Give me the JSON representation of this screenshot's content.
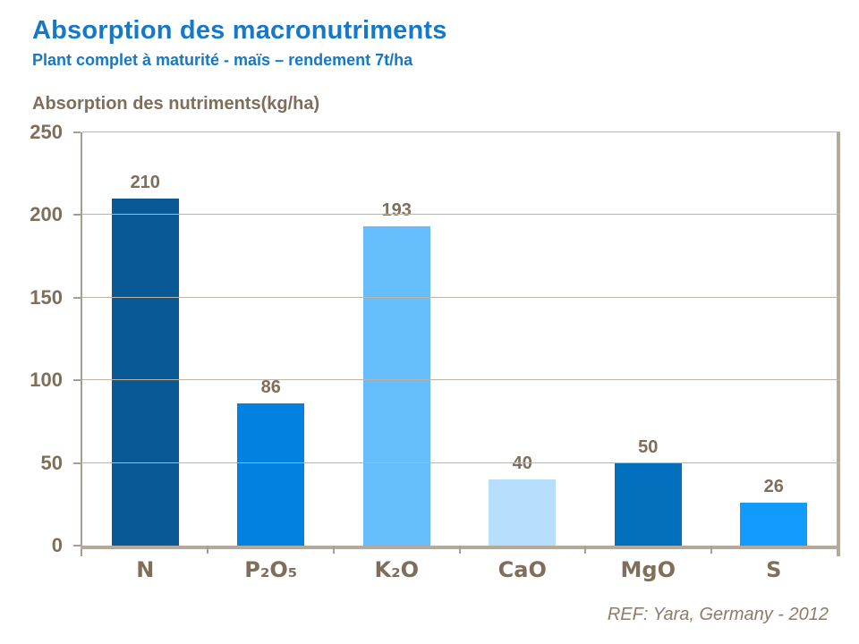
{
  "header": {
    "title": "Absorption des macronutriments",
    "subtitle": "Plant complet à maturité - maïs – rendement 7t/ha"
  },
  "chart_data": {
    "type": "bar",
    "title": "Absorption des macronutriments",
    "ylabel": "Absorption des nutriments(kg/ha)",
    "xlabel": "",
    "categories": [
      "N",
      "P₂O₅",
      "K₂O",
      "CaO",
      "MgO",
      "S"
    ],
    "values": [
      210,
      86,
      193,
      40,
      50,
      26
    ],
    "bar_colors": [
      "#085996",
      "#0281E0",
      "#66BDFC",
      "#B7DFFD",
      "#0270BD",
      "#129BFB"
    ],
    "ylim": [
      0,
      250
    ],
    "ytick_step": 50,
    "yticks": [
      0,
      50,
      100,
      150,
      200,
      250
    ],
    "grid": true,
    "legend": false,
    "data_labels": true
  },
  "footer": {
    "reference": "REF: Yara, Germany - 2012"
  },
  "colors": {
    "title_blue": "#1578C8",
    "label_brown": "#7E6E5A",
    "axis_line": "#A89E90",
    "axis_line_thick": "#B3AA9C",
    "gridline": "#BDB4A8",
    "footer_text": "#8C7C69"
  }
}
